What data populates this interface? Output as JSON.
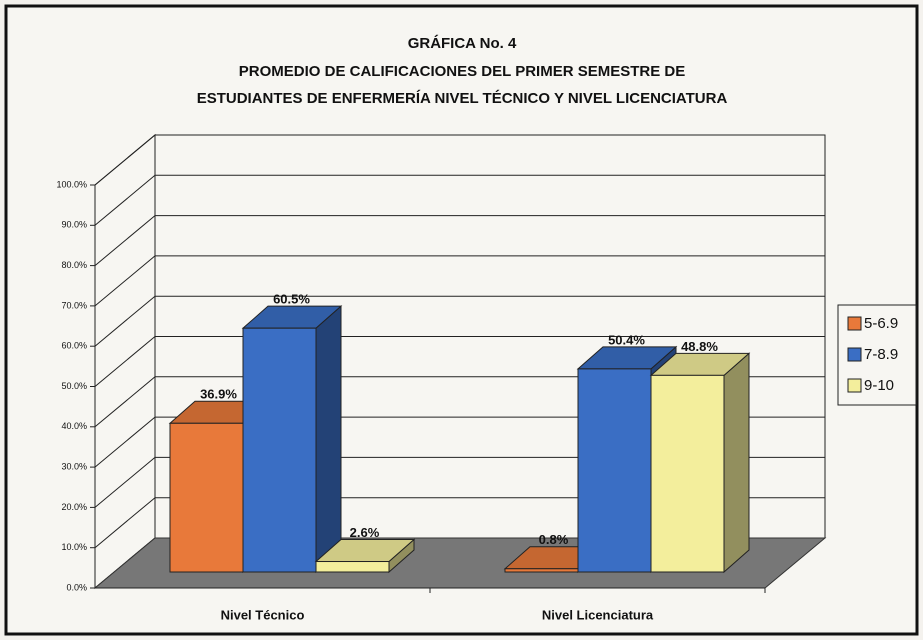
{
  "chart_data": {
    "type": "bar3d",
    "title": [
      "GRÁFICA No. 4",
      "PROMEDIO DE CALIFICACIONES DEL PRIMER SEMESTRE DE",
      "ESTUDIANTES DE ENFERMERÍA NIVEL TÉCNICO Y NIVEL LICENCIATURA"
    ],
    "categories": [
      "Nivel Técnico",
      "Nivel Licenciatura"
    ],
    "series": [
      {
        "name": "5-6.9",
        "color": "#e8793a",
        "values": [
          36.9,
          0.8
        ],
        "value_labels": [
          "36.9%",
          "0.8%"
        ]
      },
      {
        "name": "7-8.9",
        "color": "#3a6ec4",
        "values": [
          60.5,
          50.4
        ],
        "value_labels": [
          "60.5%",
          "50.4%"
        ]
      },
      {
        "name": "9-10",
        "color": "#f3ee9c",
        "values": [
          2.6,
          48.8
        ],
        "value_labels": [
          "2.6%",
          "48.8%"
        ]
      }
    ],
    "ylim": [
      0,
      100
    ],
    "yticks": [
      {
        "value": 0,
        "label": "0.0%"
      },
      {
        "value": 10,
        "label": "10.0%"
      },
      {
        "value": 20,
        "label": "20.0%"
      },
      {
        "value": 30,
        "label": "30.0%"
      },
      {
        "value": 40,
        "label": "40.0%"
      },
      {
        "value": 50,
        "label": "50.0%"
      },
      {
        "value": 60,
        "label": "60.0%"
      },
      {
        "value": 70,
        "label": "70.0%"
      },
      {
        "value": 80,
        "label": "80.0%"
      },
      {
        "value": 90,
        "label": "90.0%"
      },
      {
        "value": 100,
        "label": "100.0%"
      }
    ],
    "grid": true,
    "legend": "right"
  }
}
